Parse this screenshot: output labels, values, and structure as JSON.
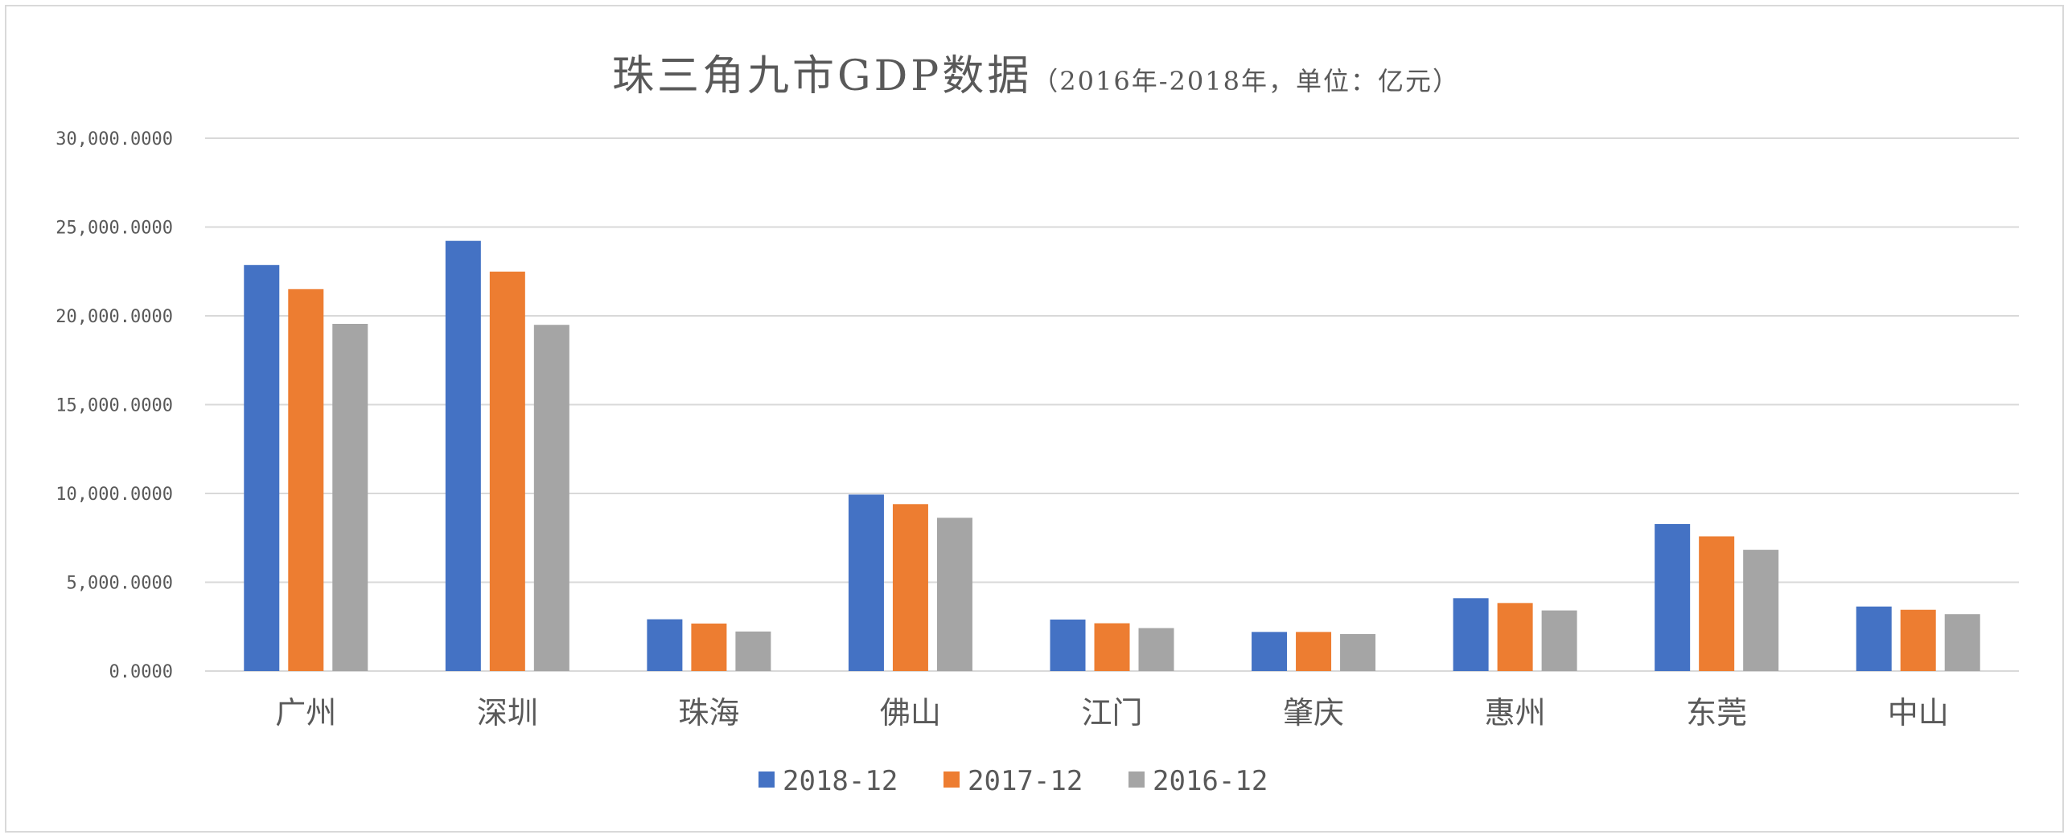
{
  "chart_data": {
    "type": "bar",
    "title": "珠三角九市GDP数据",
    "subtitle": "（2016年-2018年，单位：亿元）",
    "categories": [
      "广州",
      "深圳",
      "珠海",
      "佛山",
      "江门",
      "肇庆",
      "惠州",
      "东莞",
      "中山"
    ],
    "series": [
      {
        "name": "2018-12",
        "color": "#4472c4",
        "values": [
          22859.35,
          24221.98,
          2914.74,
          9935.88,
          2900.41,
          2201.8,
          4103.05,
          8278.59,
          3632.7
        ]
      },
      {
        "name": "2017-12",
        "color": "#ed7d31",
        "values": [
          21503.15,
          22490.06,
          2675.18,
          9398.52,
          2690.25,
          2200.61,
          3830.58,
          7582.12,
          3450.31
        ]
      },
      {
        "name": "2016-12",
        "color": "#a5a5a5",
        "values": [
          19547.44,
          19492.6,
          2226.37,
          8630.0,
          2418.78,
          2084.02,
          3412.17,
          6827.67,
          3202.78
        ]
      }
    ],
    "ylim": [
      0,
      30000
    ],
    "yticks": [
      0,
      5000,
      10000,
      15000,
      20000,
      25000,
      30000
    ],
    "ytick_labels": [
      "0.0000",
      "5,000.0000",
      "10,000.0000",
      "15,000.0000",
      "20,000.0000",
      "25,000.0000",
      "30,000.0000"
    ],
    "grid": true,
    "legend_position": "bottom",
    "gridline_color": "#d9d9d9",
    "text_color": "#595959"
  }
}
